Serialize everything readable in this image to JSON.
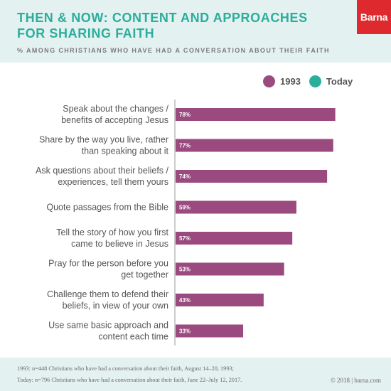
{
  "header": {
    "title": "THEN & NOW: CONTENT AND APPROACHES FOR SHARING FAITH",
    "subtitle": "% AMONG CHRISTIANS WHO HAVE HAD A CONVERSATION ABOUT THEIR FAITH",
    "logo": "Barna"
  },
  "legend": [
    {
      "label": "1993",
      "color": "#9a4a7e"
    },
    {
      "label": "Today",
      "color": "#2bae9c"
    }
  ],
  "chart_data": {
    "type": "bar",
    "orientation": "horizontal",
    "categories": [
      [
        "Speak about the changes /",
        "benefits of accepting Jesus"
      ],
      [
        "Share by the way you live, rather",
        "than speaking about it"
      ],
      [
        "Ask questions about their beliefs /",
        "experiences, tell them yours"
      ],
      [
        "Quote passages from the Bible"
      ],
      [
        "Tell the story of how you first",
        "came to believe in Jesus"
      ],
      [
        "Pray for the person before you",
        "get together"
      ],
      [
        "Challenge them to defend their",
        "beliefs, in view of your own"
      ],
      [
        "Use same basic approach and",
        "content each time"
      ]
    ],
    "series": [
      {
        "name": "1993",
        "color": "#9a4a7e",
        "values": [
          78,
          77,
          74,
          59,
          57,
          53,
          43,
          33
        ]
      }
    ],
    "data_labels": [
      "78%",
      "77%",
      "74%",
      "59%",
      "57%",
      "53%",
      "43%",
      "33%"
    ],
    "xlim": [
      0,
      100
    ],
    "grid": false,
    "legend_position": "top-right"
  },
  "footer": {
    "source_1993": "1993: n=448 Christians who have had a conversation about their faith, August 14–20, 1993;",
    "source_today": "Today: n=796 Christians who have had a conversation about their faith, June 22–July 12, 2017.",
    "copyright": "© 2018 | barna.com"
  }
}
